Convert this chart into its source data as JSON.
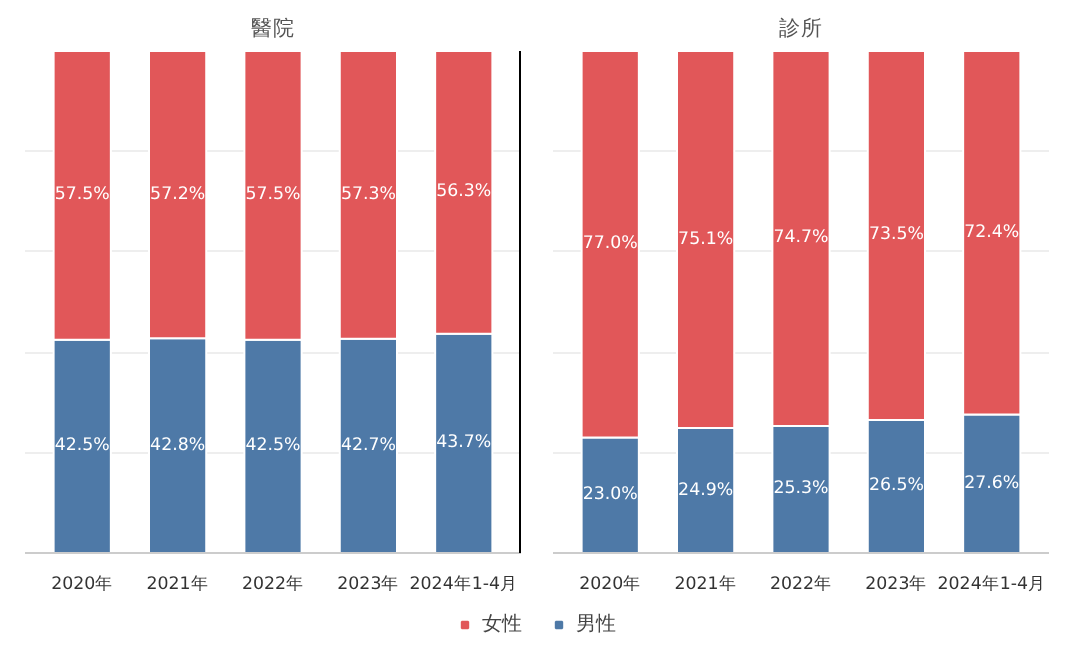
{
  "chart_data": [
    {
      "type": "bar",
      "title": "醫院",
      "stacked": true,
      "grid": "y",
      "legend": "bottom",
      "tick_labels": "x",
      "categories": [
        "2020年",
        "2021年",
        "2022年",
        "2023年",
        "2024年1-4月"
      ],
      "series": [
        {
          "name": "男性",
          "color": "#4e79a7",
          "values": [
            42.5,
            42.8,
            42.5,
            42.7,
            43.7
          ],
          "value_labels": [
            "42.5%",
            "42.8%",
            "42.5%",
            "42.7%",
            "43.7%"
          ]
        },
        {
          "name": "女性",
          "color": "#e15759",
          "values": [
            57.5,
            57.2,
            57.5,
            57.3,
            56.3
          ],
          "value_labels": [
            "57.5%",
            "57.2%",
            "57.5%",
            "57.3%",
            "56.3%"
          ]
        }
      ]
    },
    {
      "type": "bar",
      "title": "診所",
      "stacked": true,
      "grid": "y",
      "tick_labels": "x",
      "categories": [
        "2020年",
        "2021年",
        "2022年",
        "2023年",
        "2024年1-4月"
      ],
      "series": [
        {
          "color": "#4e79a7",
          "values": [
            23.0,
            24.9,
            25.3,
            26.5,
            27.6
          ],
          "value_labels": [
            "23.0%",
            "24.9%",
            "25.3%",
            "26.5%",
            "27.6%"
          ]
        },
        {
          "color": "#e15759",
          "values": [
            77.0,
            75.1,
            74.7,
            73.5,
            72.4
          ],
          "value_labels": [
            "77.0%",
            "75.1%",
            "74.7%",
            "73.5%",
            "72.4%"
          ]
        }
      ]
    }
  ]
}
